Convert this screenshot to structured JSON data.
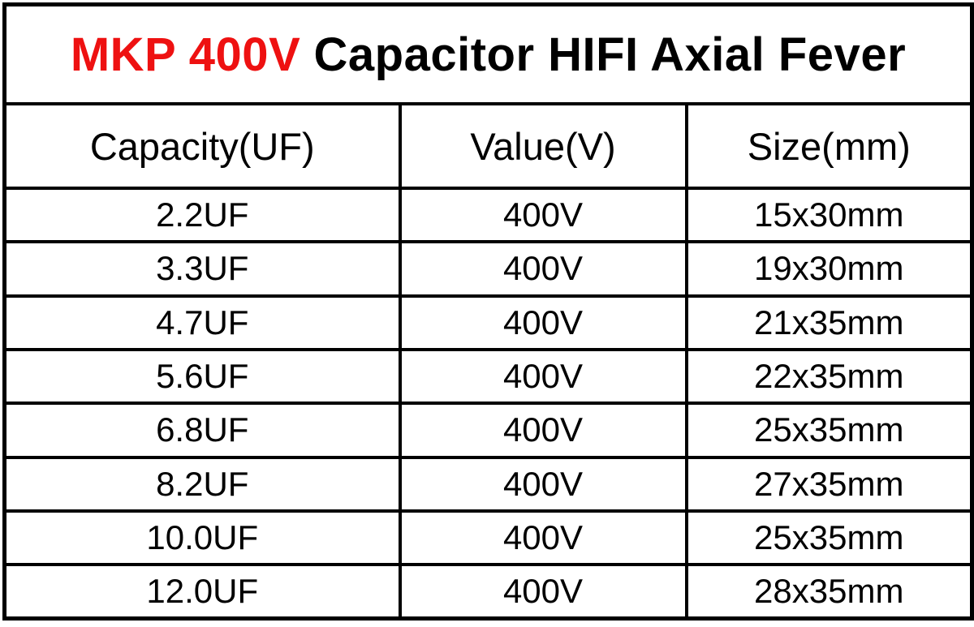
{
  "colors": {
    "title_highlight": "#ee1111",
    "text": "#000000",
    "border": "#000000",
    "background": "#ffffff"
  },
  "table": {
    "title": {
      "highlight": "MKP 400V",
      "rest": "Capacitor HIFI Axial Fever"
    },
    "headers": [
      "Capacity(UF)",
      "Value(V)",
      "Size(mm)"
    ],
    "rows": [
      [
        "2.2UF",
        "400V",
        "15x30mm"
      ],
      [
        "3.3UF",
        "400V",
        "19x30mm"
      ],
      [
        "4.7UF",
        "400V",
        "21x35mm"
      ],
      [
        "5.6UF",
        "400V",
        "22x35mm"
      ],
      [
        "6.8UF",
        "400V",
        "25x35mm"
      ],
      [
        "8.2UF",
        "400V",
        "27x35mm"
      ],
      [
        "10.0UF",
        "400V",
        "25x35mm"
      ],
      [
        "12.0UF",
        "400V",
        "28x35mm"
      ]
    ]
  },
  "chart_data": {
    "type": "table",
    "title": "MKP 400V Capacitor HIFI Axial Fever",
    "columns": [
      "Capacity(UF)",
      "Value(V)",
      "Size(mm)"
    ],
    "rows": [
      [
        "2.2UF",
        "400V",
        "15x30mm"
      ],
      [
        "3.3UF",
        "400V",
        "19x30mm"
      ],
      [
        "4.7UF",
        "400V",
        "21x35mm"
      ],
      [
        "5.6UF",
        "400V",
        "22x35mm"
      ],
      [
        "6.8UF",
        "400V",
        "25x35mm"
      ],
      [
        "8.2UF",
        "400V",
        "27x35mm"
      ],
      [
        "10.0UF",
        "400V",
        "25x35mm"
      ],
      [
        "12.0UF",
        "400V",
        "28x35mm"
      ]
    ]
  }
}
